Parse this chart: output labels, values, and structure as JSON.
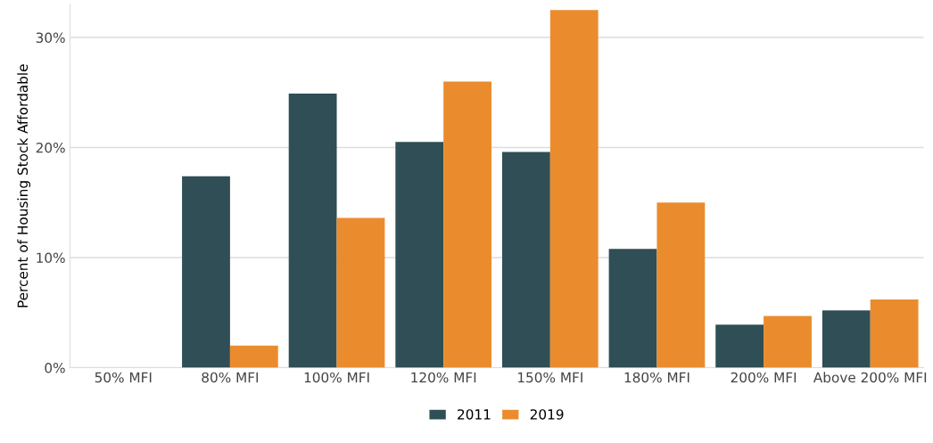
{
  "chart_data": {
    "type": "bar",
    "ylabel": "Percent of Housing Stock Affordable",
    "categories": [
      "50% MFI",
      "80% MFI",
      "100% MFI",
      "120% MFI",
      "150% MFI",
      "180% MFI",
      "200% MFI",
      "Above 200% MFI"
    ],
    "series": [
      {
        "name": "2011",
        "color": "#2f4e56",
        "values": [
          0,
          17.4,
          24.9,
          20.5,
          19.6,
          10.8,
          3.9,
          5.2
        ]
      },
      {
        "name": "2019",
        "color": "#ea8c2e",
        "values": [
          0,
          2.0,
          13.6,
          26.0,
          32.5,
          15.0,
          4.7,
          6.2
        ]
      }
    ],
    "ylim": [
      0,
      33
    ],
    "yticks": [
      {
        "value": 0,
        "label": "0%"
      },
      {
        "value": 10,
        "label": "10%"
      },
      {
        "value": 20,
        "label": "20%"
      },
      {
        "value": 30,
        "label": "30%"
      }
    ],
    "grid": "y",
    "legend": "bottom"
  }
}
